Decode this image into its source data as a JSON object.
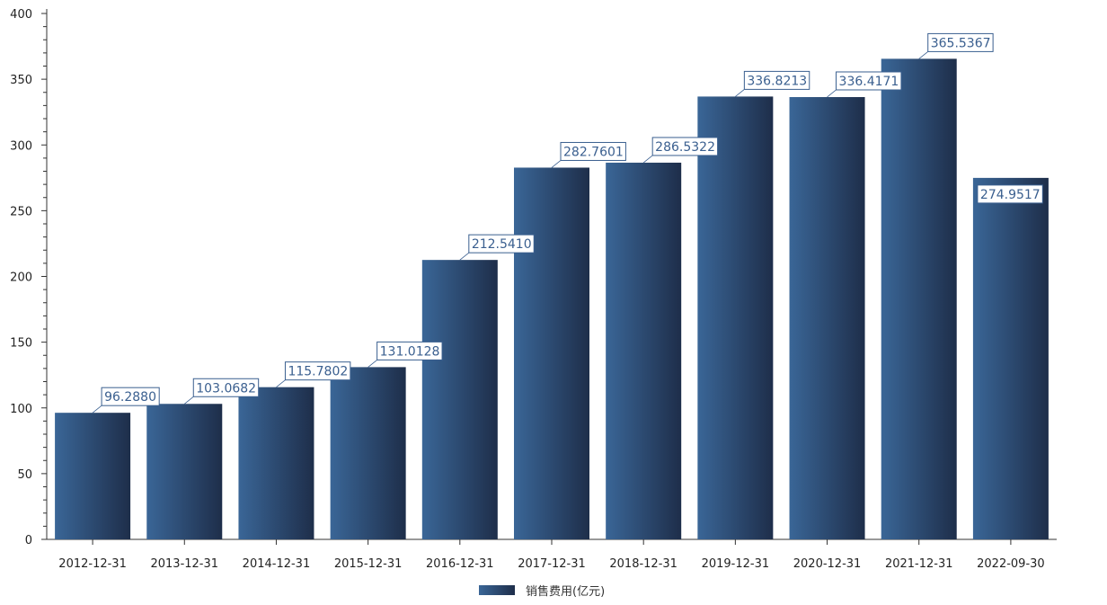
{
  "chart_data": {
    "type": "bar",
    "title": "",
    "xlabel": "",
    "ylabel": "",
    "ylim": [
      0,
      400
    ],
    "yticks": [
      0,
      50,
      100,
      150,
      200,
      250,
      300,
      350,
      400
    ],
    "grid": false,
    "legend_position": "bottom-center",
    "categories": [
      "2012-12-31",
      "2013-12-31",
      "2014-12-31",
      "2015-12-31",
      "2016-12-31",
      "2017-12-31",
      "2018-12-31",
      "2019-12-31",
      "2020-12-31",
      "2021-12-31",
      "2022-09-30"
    ],
    "series": [
      {
        "name": "销售费用(亿元)",
        "values": [
          96.288,
          103.0682,
          115.7802,
          131.0128,
          212.541,
          282.7601,
          286.5322,
          336.8213,
          336.4171,
          365.5367,
          274.9517
        ],
        "labels": [
          "96.2880",
          "103.0682",
          "115.7802",
          "131.0128",
          "212.5410",
          "282.7601",
          "286.5322",
          "336.8213",
          "336.4171",
          "365.5367",
          "274.9517"
        ]
      }
    ],
    "colors": {
      "bar_light": "#3a6697",
      "bar_dark": "#1e2e4a",
      "label_text": "#3a5f8f",
      "label_border": "#3a5f8f",
      "axis": "#333333"
    }
  }
}
